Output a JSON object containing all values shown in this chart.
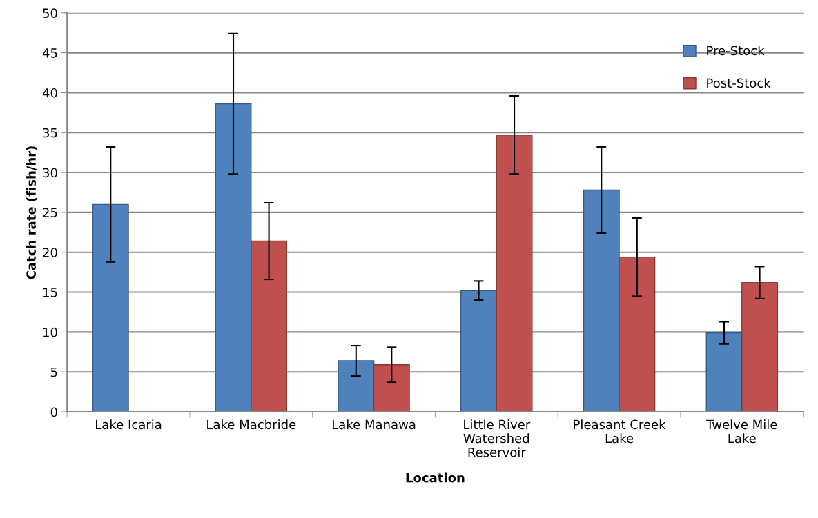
{
  "chart_data": {
    "type": "bar",
    "xlabel": "Location",
    "ylabel": "Catch rate (fish/hr)",
    "categories": [
      "Lake Icaria",
      "Lake Macbride",
      "Lake Manawa",
      "Little River\nWatershed\nReservoir",
      "Pleasant Creek\nLake",
      "Twelve Mile\nLake"
    ],
    "series": [
      {
        "name": "Pre-Stock",
        "color": "#4f81bd",
        "values": [
          26.0,
          38.6,
          6.4,
          15.2,
          27.8,
          9.9
        ],
        "errors": [
          7.2,
          8.8,
          1.9,
          1.2,
          5.4,
          1.4
        ]
      },
      {
        "name": "Post-Stock",
        "color": "#c0504d",
        "values": [
          null,
          21.4,
          5.9,
          34.7,
          19.4,
          16.2
        ],
        "errors": [
          null,
          4.8,
          2.2,
          4.9,
          4.9,
          2.0
        ]
      }
    ],
    "ylim": [
      0,
      50
    ],
    "yticks": [
      0,
      5,
      10,
      15,
      20,
      25,
      30,
      35,
      40,
      45,
      50
    ],
    "grid": "y",
    "legend": "top right"
  }
}
